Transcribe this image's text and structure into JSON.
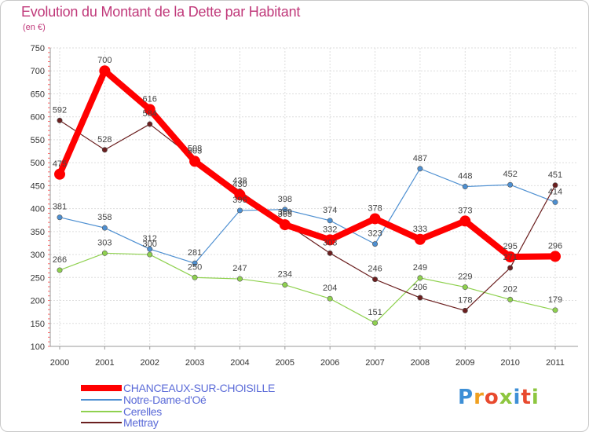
{
  "title": "Evolution du Montant de la Dette par Habitant",
  "subtitle": "(en €)",
  "logo": {
    "letters": [
      "P",
      "r",
      "o",
      "x",
      "i",
      "t",
      "i"
    ],
    "colors": [
      "#3d8fd6",
      "#f0a020",
      "#e84a2e",
      "#8dc63f",
      "#3d8fd6",
      "#e84a2e",
      "#8dc63f"
    ]
  },
  "chart_data": {
    "type": "line",
    "x": [
      "2000",
      "2001",
      "2002",
      "2003",
      "2004",
      "2005",
      "2006",
      "2007",
      "2008",
      "2009",
      "2010",
      "2011"
    ],
    "ylim": [
      100,
      750
    ],
    "yticks": [
      "100",
      "150",
      "200",
      "250",
      "300",
      "350",
      "400",
      "450",
      "500",
      "550",
      "600",
      "650",
      "700",
      "750"
    ],
    "grid": true,
    "legend_position": "bottom-left",
    "series": [
      {
        "name": "CHANCEAUX-SUR-CHOISILLE",
        "color": "#ff0000",
        "values": [
          475,
          700,
          616,
          503,
          430,
          365,
          332,
          378,
          333,
          373,
          295,
          296
        ]
      },
      {
        "name": "Notre-Dame-d'Oé",
        "color": "#4d8fd1",
        "values": [
          381,
          358,
          312,
          281,
          396,
          398,
          374,
          323,
          487,
          448,
          452,
          414
        ]
      },
      {
        "name": "Cerelles",
        "color": "#8fd14f",
        "values": [
          266,
          303,
          300,
          250,
          247,
          234,
          204,
          151,
          249,
          229,
          202,
          179
        ]
      },
      {
        "name": "Mettray",
        "color": "#6b1f1f",
        "values": [
          592,
          528,
          584,
          508,
          438,
          369,
          303,
          246,
          206,
          178,
          271,
          451
        ]
      }
    ],
    "point_labels": [
      [
        "475",
        "700",
        "616",
        "503",
        "430",
        "365",
        "332",
        "378",
        "333",
        "373",
        "295",
        "296"
      ],
      [
        "381",
        "358",
        "312",
        "281",
        "396",
        "398",
        "374",
        "323",
        "487",
        "448",
        "452",
        "414"
      ],
      [
        "266",
        "303",
        "300",
        "250",
        "247",
        "234",
        "204",
        "151",
        "249",
        "229",
        "202",
        "179"
      ],
      [
        "592",
        "528",
        "584",
        "508",
        "438",
        "369",
        "303",
        "246",
        "206",
        "178",
        "271",
        "451"
      ]
    ]
  }
}
